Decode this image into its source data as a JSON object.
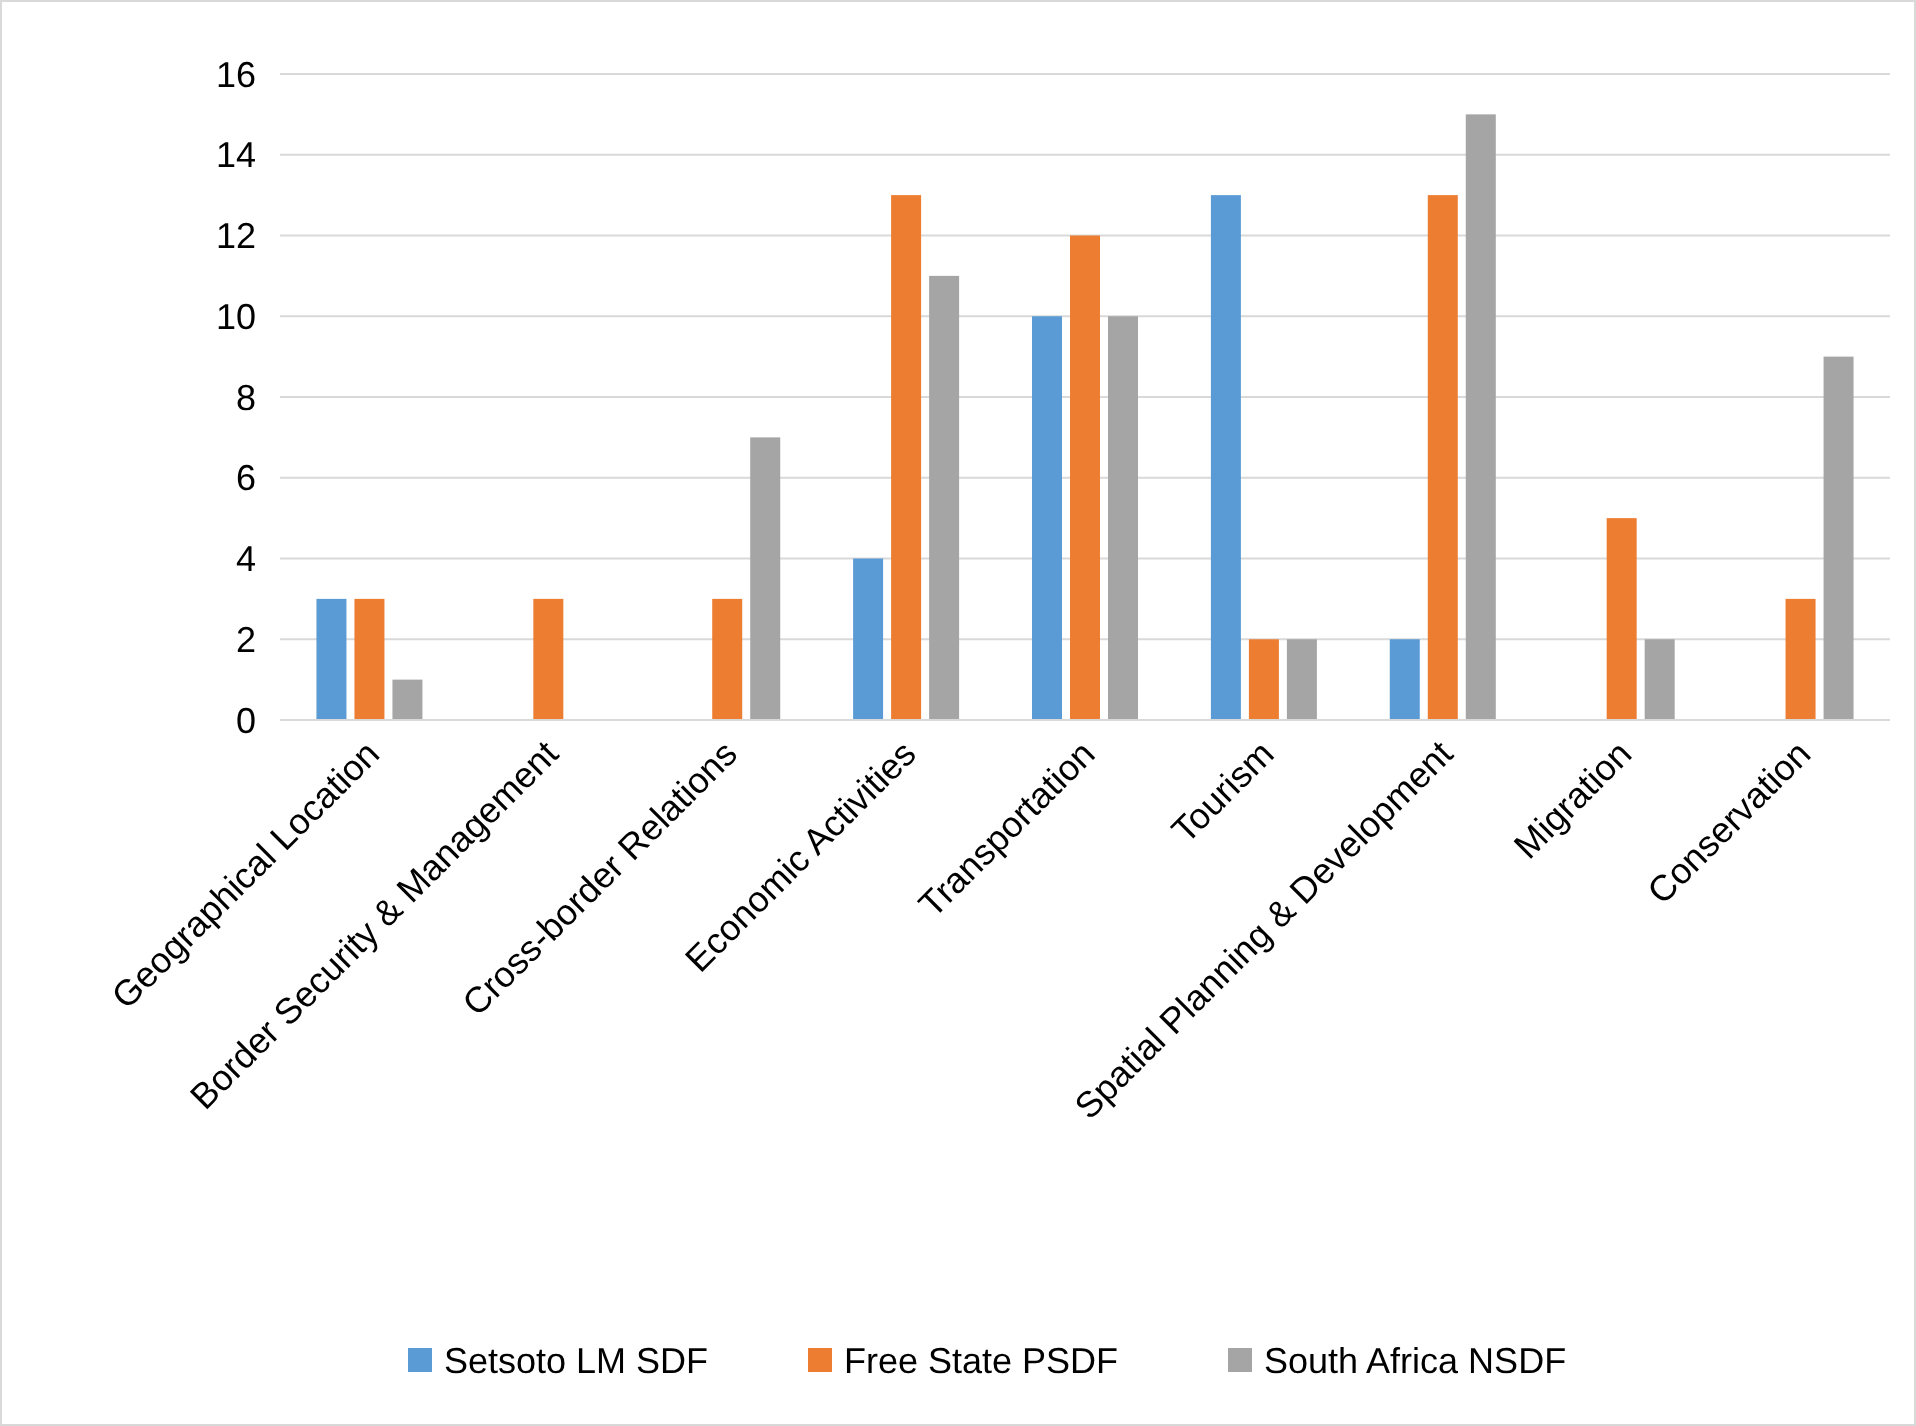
{
  "chart_data": {
    "type": "bar",
    "categories": [
      "Geographical Location",
      "Border Security & Management",
      "Cross-border Relations",
      "Economic Activities",
      "Transportation",
      "Tourism",
      "Spatial Planning & Development",
      "Migration",
      "Conservation"
    ],
    "series": [
      {
        "name": "Setsoto LM SDF",
        "color": "#5b9bd5",
        "values": [
          3,
          0,
          0,
          4,
          10,
          13,
          2,
          0,
          0
        ]
      },
      {
        "name": "Free State PSDF",
        "color": "#ed7d31",
        "values": [
          3,
          3,
          3,
          13,
          12,
          2,
          13,
          5,
          3
        ]
      },
      {
        "name": "South Africa NSDF",
        "color": "#a5a5a5",
        "values": [
          1,
          0,
          7,
          11,
          10,
          2,
          15,
          2,
          9
        ]
      }
    ],
    "ylim": [
      0,
      16
    ],
    "yticks": [
      0,
      2,
      4,
      6,
      8,
      10,
      12,
      14,
      16
    ],
    "grid": "y",
    "legend": "bottom"
  }
}
